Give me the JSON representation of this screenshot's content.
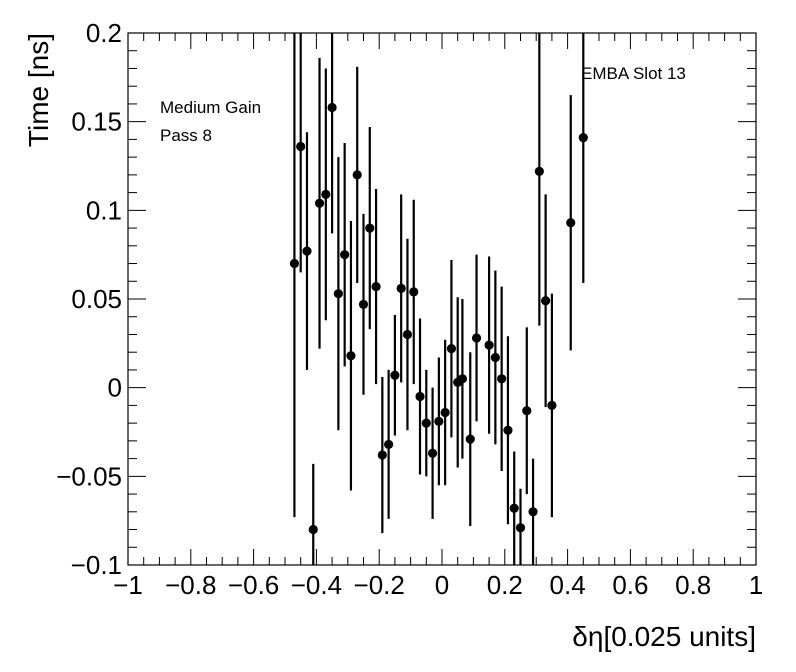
{
  "chart_data": {
    "type": "scatter",
    "xlabel": "δη[0.025 units]",
    "ylabel": "Time [ns]",
    "xlim": [
      -1,
      1
    ],
    "ylim": [
      -0.1,
      0.2
    ],
    "x_ticks": [
      -1,
      -0.8,
      -0.6,
      -0.4,
      -0.2,
      0,
      0.2,
      0.4,
      0.6,
      0.8,
      1
    ],
    "x_tick_labels": [
      "−1",
      "−0.8",
      "−0.6",
      "−0.4",
      "−0.2",
      "0",
      "0.2",
      "0.4",
      "0.6",
      "0.8",
      "1"
    ],
    "y_ticks": [
      -0.1,
      -0.05,
      0,
      0.05,
      0.1,
      0.15,
      0.2
    ],
    "y_tick_labels": [
      "−0.1",
      "−0.05",
      "0",
      "0.05",
      "0.1",
      "0.15",
      "0.2"
    ],
    "grid": false,
    "annotations": [
      "Medium Gain",
      "Pass 8",
      "EMBA Slot 13"
    ],
    "points": [
      {
        "x": -0.47,
        "y": 0.07,
        "err": 0.143
      },
      {
        "x": -0.45,
        "y": 0.136,
        "err": 0.071
      },
      {
        "x": -0.43,
        "y": 0.077,
        "err": 0.067
      },
      {
        "x": -0.41,
        "y": -0.08,
        "err": 0.037
      },
      {
        "x": -0.39,
        "y": 0.104,
        "err": 0.082
      },
      {
        "x": -0.37,
        "y": 0.109,
        "err": 0.071
      },
      {
        "x": -0.35,
        "y": 0.158,
        "err": 0.071
      },
      {
        "x": -0.33,
        "y": 0.053,
        "err": 0.077
      },
      {
        "x": -0.31,
        "y": 0.075,
        "err": 0.063
      },
      {
        "x": -0.29,
        "y": 0.018,
        "err": 0.076
      },
      {
        "x": -0.27,
        "y": 0.12,
        "err": 0.061
      },
      {
        "x": -0.25,
        "y": 0.047,
        "err": 0.051
      },
      {
        "x": -0.23,
        "y": 0.09,
        "err": 0.057
      },
      {
        "x": -0.21,
        "y": 0.057,
        "err": 0.055
      },
      {
        "x": -0.19,
        "y": -0.038,
        "err": 0.044
      },
      {
        "x": -0.17,
        "y": -0.032,
        "err": 0.042
      },
      {
        "x": -0.15,
        "y": 0.007,
        "err": 0.034
      },
      {
        "x": -0.13,
        "y": 0.056,
        "err": 0.053
      },
      {
        "x": -0.11,
        "y": 0.03,
        "err": 0.054
      },
      {
        "x": -0.09,
        "y": 0.054,
        "err": 0.052
      },
      {
        "x": -0.07,
        "y": -0.005,
        "err": 0.044
      },
      {
        "x": -0.05,
        "y": -0.02,
        "err": 0.03
      },
      {
        "x": -0.03,
        "y": -0.037,
        "err": 0.037
      },
      {
        "x": -0.01,
        "y": -0.019,
        "err": 0.036
      },
      {
        "x": 0.01,
        "y": -0.014,
        "err": 0.041
      },
      {
        "x": 0.03,
        "y": 0.022,
        "err": 0.05
      },
      {
        "x": 0.05,
        "y": 0.003,
        "err": 0.048
      },
      {
        "x": 0.065,
        "y": 0.005,
        "err": 0.045
      },
      {
        "x": 0.09,
        "y": -0.029,
        "err": 0.049
      },
      {
        "x": 0.11,
        "y": 0.028,
        "err": 0.047
      },
      {
        "x": 0.15,
        "y": 0.024,
        "err": 0.05
      },
      {
        "x": 0.17,
        "y": 0.017,
        "err": 0.049
      },
      {
        "x": 0.19,
        "y": 0.005,
        "err": 0.052
      },
      {
        "x": 0.21,
        "y": -0.024,
        "err": 0.053
      },
      {
        "x": 0.23,
        "y": -0.068,
        "err": 0.032
      },
      {
        "x": 0.25,
        "y": -0.079,
        "err": 0.022
      },
      {
        "x": 0.27,
        "y": -0.013,
        "err": 0.047
      },
      {
        "x": 0.29,
        "y": -0.07,
        "err": 0.03
      },
      {
        "x": 0.31,
        "y": 0.122,
        "err": 0.087
      },
      {
        "x": 0.33,
        "y": 0.049,
        "err": 0.06
      },
      {
        "x": 0.35,
        "y": -0.01,
        "err": 0.063
      },
      {
        "x": 0.41,
        "y": 0.093,
        "err": 0.072
      },
      {
        "x": 0.45,
        "y": 0.141,
        "err": 0.082
      }
    ]
  }
}
